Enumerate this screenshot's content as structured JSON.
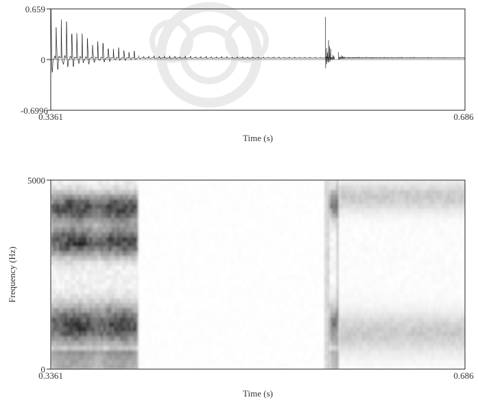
{
  "chart_data": [
    {
      "type": "line",
      "title": "",
      "xlabel": "Time (s)",
      "ylabel": "",
      "xlim": [
        0.3361,
        0.686
      ],
      "ylim": [
        -0.6996,
        0.659
      ],
      "x_tick_labels": [
        "0.3361",
        "0.686"
      ],
      "y_tick_labels": [
        "0.659",
        "0",
        "-0.6996"
      ],
      "grid": false,
      "segments": [
        {
          "name": "",
          "x_start": 0.3361,
          "x_end": 0.41,
          "envelope_start": 0.68,
          "envelope_end": 0.08,
          "period_s": 0.0044
        },
        {
          "name": "",
          "x_start": 0.41,
          "x_end": 0.568,
          "envelope_start": 0.03,
          "envelope_end": 0.01,
          "period_s": 0.0044
        },
        {
          "name": "",
          "x_start": 0.568,
          "x_end": 0.576,
          "envelope_start": 0.55,
          "envelope_end": 0.06,
          "period_s": 0.0009
        },
        {
          "name": "",
          "x_start": 0.579,
          "x_end": 0.584,
          "envelope_start": 0.08,
          "envelope_end": 0.02,
          "period_s": 0.0009
        },
        {
          "name": "",
          "x_start": 0.584,
          "x_end": 0.686,
          "envelope_start": 0.015,
          "envelope_end": 0.005,
          "period_s": 0.0011
        }
      ]
    },
    {
      "type": "heatmap",
      "title": "",
      "xlabel": "Time (s)",
      "ylabel": "Frequency (Hz)",
      "xlim": [
        0.3361,
        0.686
      ],
      "ylim": [
        0,
        5000
      ],
      "x_tick_labels": [
        "0.3361",
        "0.686"
      ],
      "y_tick_labels": [
        "5000",
        "0"
      ],
      "colormap": "grayscale (dark = high energy)",
      "regions": [
        {
          "x_start": 0.3361,
          "x_end": 0.41,
          "formants_hz": [
            1100,
            3300,
            4200
          ],
          "intensity": 0.9
        },
        {
          "x_start": 0.41,
          "x_end": 0.568,
          "formants_hz": [],
          "intensity": 0.1
        },
        {
          "x_start": 0.568,
          "x_end": 0.572,
          "formants_hz": [
            0,
            5000
          ],
          "intensity": 0.9,
          "burst": true
        },
        {
          "x_start": 0.572,
          "x_end": 0.578,
          "formants_hz": [
            1100,
            4300
          ],
          "intensity": 0.65
        },
        {
          "x_start": 0.578,
          "x_end": 0.58,
          "formants_hz": [
            0,
            5000
          ],
          "intensity": 0.75,
          "burst": true
        },
        {
          "x_start": 0.58,
          "x_end": 0.686,
          "formants_hz": [
            900,
            4500
          ],
          "intensity": 0.25
        }
      ]
    }
  ]
}
